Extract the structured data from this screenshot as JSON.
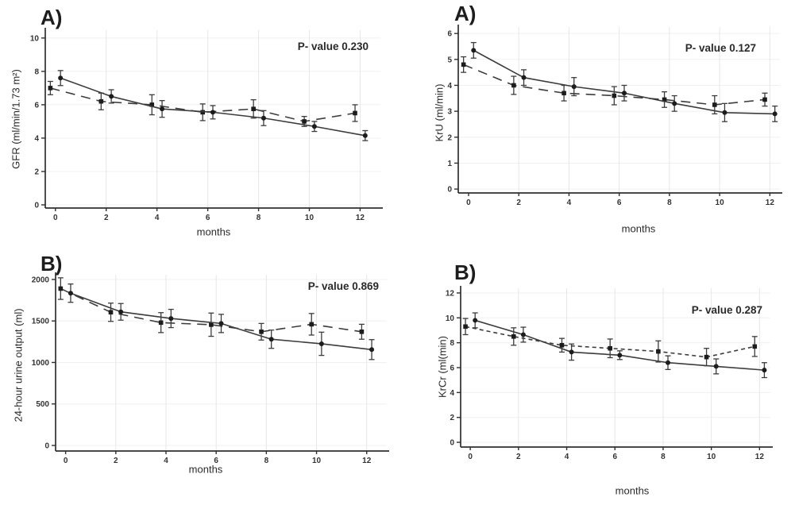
{
  "figure": {
    "background": "#ffffff",
    "axis_color": "#2f2f2f",
    "line_color": "#3c3c3c",
    "marker_color": "#1c1c1c",
    "grid_color_vertical": "#e7e7e7",
    "grid_color_horizontal": "#f0f0f0",
    "text_color": "#242424"
  },
  "chart_data": [
    {
      "type": "line",
      "panel_label": "A)",
      "p_value": "P- value 0.230",
      "xlabel": "months",
      "ylabel": "GFR (ml/min/1.73 m²)",
      "x_axis": {
        "ticks": [
          0,
          2,
          4,
          6,
          8,
          10,
          12
        ],
        "lim": [
          -0.4,
          12.8
        ]
      },
      "y_axis": {
        "ticks": [
          10,
          8,
          6,
          4,
          2,
          0
        ],
        "lim": [
          -0.19,
          10.47
        ]
      },
      "legend": "none",
      "series": [
        {
          "name": "group-solid-circle",
          "style": "solid",
          "marker": "circle",
          "x": [
            0.2,
            2.2,
            4.2,
            6.2,
            8.2,
            10.2,
            12.2
          ],
          "y": [
            7.6,
            6.5,
            5.75,
            5.55,
            5.2,
            4.7,
            4.15
          ],
          "err": [
            0.45,
            0.4,
            0.5,
            0.4,
            0.45,
            0.3,
            0.3
          ]
        },
        {
          "name": "group-dashed-square",
          "style": "long-dash",
          "marker": "square",
          "x": [
            -0.2,
            1.8,
            3.8,
            5.8,
            7.8,
            9.8,
            11.8
          ],
          "y": [
            7.0,
            6.2,
            6.0,
            5.55,
            5.75,
            5.0,
            5.5
          ],
          "err": [
            0.4,
            0.5,
            0.6,
            0.5,
            0.55,
            0.3,
            0.5
          ]
        }
      ]
    },
    {
      "type": "line",
      "panel_label": "A)",
      "p_value": "P- value 0.127",
      "xlabel": "months",
      "ylabel": "KrU (ml/min)",
      "x_axis": {
        "ticks": [
          0,
          2,
          4,
          6,
          8,
          10,
          12
        ],
        "lim": [
          -0.41,
          12.4
        ]
      },
      "y_axis": {
        "ticks": [
          6,
          5,
          4,
          3,
          2,
          1,
          0
        ],
        "lim": [
          -0.15,
          6.25
        ]
      },
      "legend": "none",
      "series": [
        {
          "name": "group-solid-circle",
          "style": "solid",
          "marker": "circle",
          "x": [
            0.2,
            2.2,
            4.2,
            6.2,
            8.2,
            10.2,
            12.2
          ],
          "y": [
            5.35,
            4.3,
            3.95,
            3.7,
            3.3,
            2.95,
            2.9
          ],
          "err": [
            0.3,
            0.3,
            0.35,
            0.3,
            0.3,
            0.35,
            0.3
          ]
        },
        {
          "name": "group-dashed-square",
          "style": "long-dash",
          "marker": "square",
          "x": [
            -0.2,
            1.8,
            3.8,
            5.8,
            7.8,
            9.8,
            11.8
          ],
          "y": [
            4.8,
            4.0,
            3.7,
            3.6,
            3.45,
            3.25,
            3.45
          ],
          "err": [
            0.3,
            0.35,
            0.3,
            0.35,
            0.3,
            0.35,
            0.25
          ]
        }
      ]
    },
    {
      "type": "line",
      "panel_label": "B)",
      "p_value": "P- value 0.869",
      "xlabel": "months",
      "ylabel": "24-hour urine output (ml)",
      "x_axis": {
        "ticks": [
          0,
          2,
          4,
          6,
          8,
          10,
          12
        ],
        "lim": [
          -0.4,
          12.8
        ]
      },
      "y_axis": {
        "ticks": [
          2000,
          1500,
          1000,
          500,
          0
        ],
        "lim": [
          -67,
          2057
        ]
      },
      "legend": "none",
      "series": [
        {
          "name": "group-solid-circle",
          "style": "solid",
          "marker": "circle",
          "x": [
            0.2,
            2.2,
            4.2,
            6.2,
            8.2,
            10.2,
            12.2
          ],
          "y": [
            1835,
            1610,
            1530,
            1470,
            1280,
            1225,
            1155
          ],
          "err": [
            110,
            100,
            110,
            110,
            110,
            140,
            120
          ]
        },
        {
          "name": "group-dashed-square",
          "style": "long-dash",
          "marker": "square",
          "x": [
            -0.2,
            1.8,
            3.8,
            5.8,
            7.8,
            9.8,
            11.8
          ],
          "y": [
            1890,
            1605,
            1480,
            1455,
            1370,
            1460,
            1370
          ],
          "err": [
            130,
            110,
            120,
            140,
            100,
            130,
            90
          ]
        }
      ]
    },
    {
      "type": "line",
      "panel_label": "B)",
      "p_value": "P- value 0.287",
      "xlabel": "months",
      "ylabel": "KrCr (ml(min)",
      "x_axis": {
        "ticks": [
          0,
          2,
          4,
          6,
          8,
          10,
          12
        ],
        "lim": [
          -0.4,
          12.45
        ]
      },
      "y_axis": {
        "ticks": [
          12,
          10,
          8,
          6,
          4,
          2,
          0
        ],
        "lim": [
          -0.38,
          12.38
        ]
      },
      "legend": "none",
      "series": [
        {
          "name": "group-solid-circle",
          "style": "solid",
          "marker": "circle",
          "x": [
            0.2,
            2.2,
            4.2,
            6.2,
            8.2,
            10.2,
            12.2
          ],
          "y": [
            9.8,
            8.65,
            7.25,
            7.0,
            6.4,
            6.1,
            5.8
          ],
          "err": [
            0.6,
            0.6,
            0.65,
            0.35,
            0.55,
            0.6,
            0.6
          ]
        },
        {
          "name": "group-dashed-square",
          "style": "short-dash",
          "marker": "square",
          "x": [
            -0.2,
            1.8,
            3.8,
            5.8,
            7.8,
            9.8,
            11.8
          ],
          "y": [
            9.3,
            8.5,
            7.8,
            7.55,
            7.3,
            6.85,
            7.7
          ],
          "err": [
            0.65,
            0.7,
            0.55,
            0.75,
            0.85,
            0.7,
            0.8
          ]
        }
      ]
    }
  ]
}
